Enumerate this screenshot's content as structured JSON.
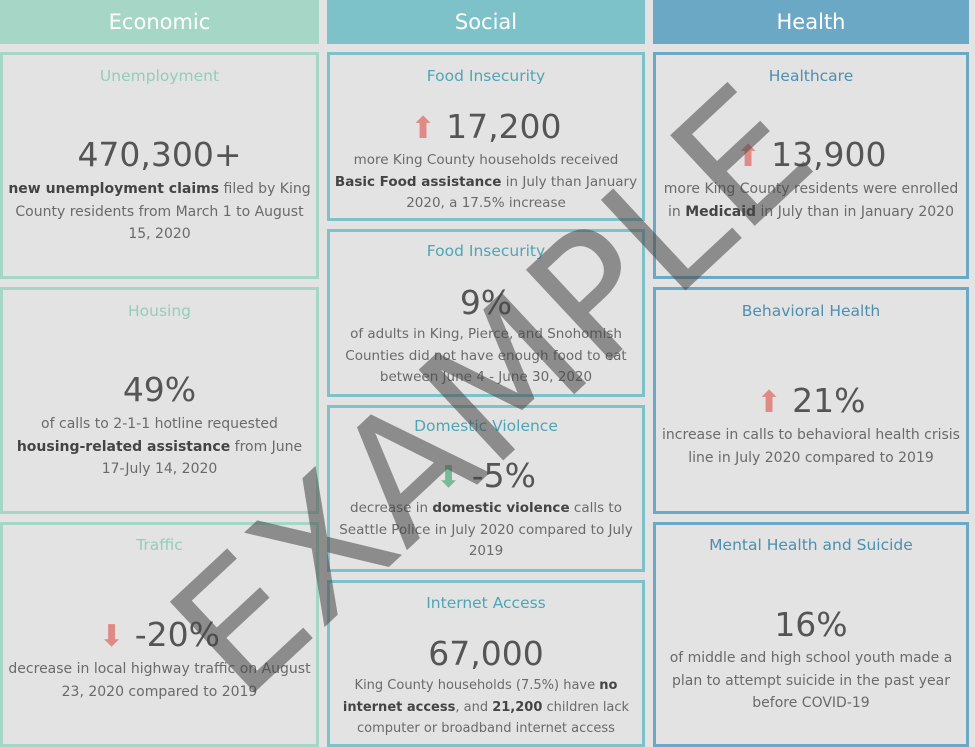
{
  "headers": {
    "economic": "Economic",
    "social": "Social",
    "health": "Health"
  },
  "colors": {
    "economic": "#a6d6c6",
    "social": "#7cc2c8",
    "health": "#6aa8c6",
    "increase_arrow": "#e08a86",
    "decrease_arrow_red": "#e08a86",
    "decrease_arrow_green": "#7ab89b"
  },
  "cards": {
    "unemployment": {
      "title": "Unemployment",
      "value": "470,300+",
      "desc_a": "new unemployment claims",
      "desc_b": " filed by King County residents from March 1 to August 15, 2020"
    },
    "housing": {
      "title": "Housing",
      "value": "49%",
      "desc_a": "of calls to 2-1-1 hotline requested ",
      "desc_b": "housing-related assistance",
      "desc_c": " from June 17-July 14, 2020"
    },
    "traffic": {
      "title": "Traffic",
      "arrow": "down-arrow",
      "value": "-20%",
      "desc": "decrease in local highway traffic on August 23, 2020 compared to 2019"
    },
    "food1": {
      "title": "Food Insecurity",
      "arrow": "up-arrow",
      "value": "17,200",
      "desc_a": "more King County households received ",
      "desc_b": "Basic Food assistance",
      "desc_c": " in July than January 2020, a 17.5% increase"
    },
    "food2": {
      "title": "Food Insecurity",
      "value": "9%",
      "desc": "of adults in King, Pierce, and Snohomish Counties did not have enough food to eat between June 4 - June 30, 2020"
    },
    "domestic": {
      "title": "Domestic Violence",
      "arrow": "down-arrow",
      "value": "-5%",
      "desc_a": "decrease in ",
      "desc_b": "domestic violence",
      "desc_c": " calls to Seattle Police in July 2020 compared to July 2019"
    },
    "internet": {
      "title": "Internet Access",
      "value": "67,000",
      "desc_a": "King County households (7.5%) have ",
      "desc_b": "no internet access",
      "desc_c": ", and ",
      "desc_d": "21,200",
      "desc_e": " children lack computer or broadband internet access"
    },
    "healthcare": {
      "title": "Healthcare",
      "arrow": "up-arrow",
      "value": "13,900",
      "desc_a": "more King County residents were enrolled in ",
      "desc_b": "Medicaid",
      "desc_c": " in July than in January 2020"
    },
    "behavioral": {
      "title": "Behavioral Health",
      "arrow": "up-arrow",
      "value": "21%",
      "desc": "increase in calls to behavioral health crisis line in July 2020 compared to 2019"
    },
    "mental": {
      "title": "Mental Health and Suicide",
      "value": "16%",
      "desc": "of middle and high school youth made a plan to attempt suicide in the past year before COVID-19"
    }
  },
  "watermark": "EXAMPLE"
}
